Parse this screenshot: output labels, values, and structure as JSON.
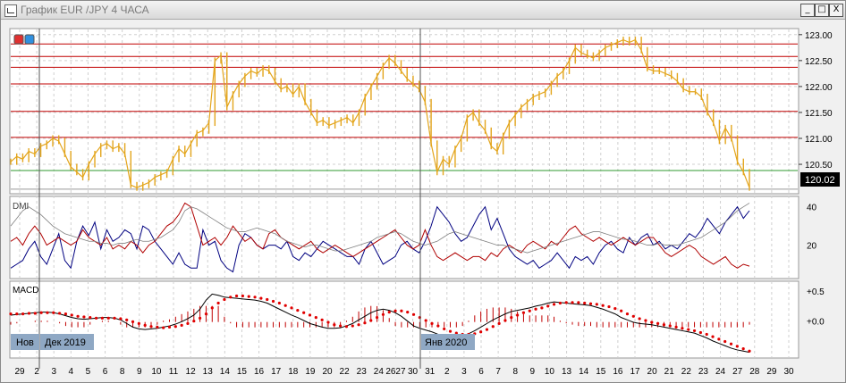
{
  "window": {
    "title": "График EUR /JPY  4 ЧАСА"
  },
  "window_buttons": {
    "minimize": "_",
    "maximize": "□",
    "close": "X"
  },
  "colors": {
    "price": "#e3a51c",
    "level_red": "#c00000",
    "level_green": "#2f9a2f",
    "dmi_pos": "#000080",
    "dmi_neg": "#b00000",
    "adx": "#808080",
    "macd_line": "#000000",
    "signal": "#e00000",
    "hist": "#c00000",
    "period_label_bg": "#8fa8c4"
  },
  "chart_data": [
    {
      "type": "line",
      "panel": "price",
      "title": "",
      "yticks": [
        "123.00",
        "122.50",
        "122.00",
        "121.50",
        "121.00",
        "120.50"
      ],
      "ylim": [
        119.95,
        123.1
      ],
      "horizontal_levels": [
        122.82,
        122.58,
        122.37,
        122.05,
        121.52,
        121.02
      ],
      "support_level": 120.38,
      "current_price": "120.02",
      "series": [
        {
          "values": [
            120.55,
            120.65,
            120.6,
            120.75,
            120.7,
            120.85,
            120.9,
            121.0,
            120.95,
            120.7,
            120.45,
            120.35,
            120.25,
            120.5,
            120.7,
            120.85,
            120.9,
            120.8,
            120.85,
            120.7,
            120.1,
            120.05,
            120.1,
            120.15,
            120.25,
            120.3,
            120.35,
            120.6,
            120.8,
            120.7,
            120.9,
            121.1,
            121.15,
            121.3,
            122.5,
            122.6,
            121.6,
            121.85,
            122.05,
            122.2,
            122.3,
            122.25,
            122.35,
            122.3,
            122.1,
            121.95,
            122.0,
            121.85,
            122.0,
            121.7,
            121.5,
            121.3,
            121.35,
            121.25,
            121.3,
            121.35,
            121.4,
            121.3,
            121.5,
            121.8,
            122.0,
            122.2,
            122.4,
            122.55,
            122.45,
            122.3,
            122.15,
            122.05,
            121.95,
            121.7,
            120.9,
            120.35,
            120.6,
            120.5,
            120.8,
            121.0,
            121.4,
            121.5,
            121.3,
            121.15,
            120.85,
            120.75,
            121.05,
            121.3,
            121.45,
            121.6,
            121.7,
            121.8,
            121.85,
            121.9,
            122.05,
            122.2,
            122.3,
            122.5,
            122.75,
            122.65,
            122.6,
            122.55,
            122.65,
            122.75,
            122.8,
            122.85,
            122.9,
            122.85,
            122.9,
            122.7,
            122.35,
            122.3,
            122.3,
            122.25,
            122.2,
            122.1,
            121.95,
            121.9,
            121.9,
            121.8,
            121.5,
            121.3,
            120.95,
            121.2,
            121.0,
            120.55,
            120.35,
            120.05
          ]
        }
      ]
    },
    {
      "type": "line",
      "panel": "dmi",
      "title": "DMI",
      "yticks": [
        "40",
        "20"
      ],
      "ylim": [
        3,
        45
      ],
      "series": [
        {
          "name": "",
          "color_key": "dmi_pos",
          "values": [
            8,
            10,
            12,
            18,
            22,
            14,
            10,
            18,
            26,
            12,
            8,
            22,
            30,
            25,
            32,
            18,
            28,
            22,
            24,
            28,
            26,
            18,
            30,
            28,
            22,
            18,
            14,
            10,
            16,
            10,
            8,
            8,
            28,
            20,
            22,
            12,
            8,
            6,
            20,
            26,
            24,
            20,
            18,
            20,
            20,
            18,
            22,
            14,
            12,
            16,
            14,
            18,
            22,
            20,
            18,
            16,
            14,
            14,
            10,
            18,
            22,
            16,
            10,
            12,
            14,
            20,
            22,
            18,
            16,
            22,
            30,
            40,
            36,
            32,
            26,
            22,
            24,
            30,
            36,
            40,
            28,
            34,
            26,
            18,
            14,
            12,
            10,
            12,
            8,
            10,
            12,
            16,
            12,
            8,
            14,
            12,
            14,
            10,
            16,
            20,
            22,
            18,
            16,
            24,
            20,
            24,
            26,
            20,
            22,
            18,
            20,
            18,
            22,
            26,
            24,
            28,
            34,
            30,
            26,
            32,
            36,
            40,
            34,
            38
          ]
        },
        {
          "name": "",
          "color_key": "dmi_neg",
          "values": [
            22,
            24,
            20,
            26,
            30,
            26,
            20,
            22,
            24,
            22,
            20,
            22,
            28,
            24,
            22,
            20,
            24,
            18,
            20,
            18,
            22,
            20,
            16,
            20,
            22,
            26,
            30,
            32,
            36,
            42,
            40,
            30,
            20,
            22,
            24,
            20,
            24,
            30,
            26,
            22,
            24,
            20,
            18,
            26,
            28,
            24,
            22,
            20,
            18,
            20,
            22,
            18,
            16,
            18,
            20,
            18,
            16,
            14,
            16,
            18,
            20,
            22,
            24,
            26,
            28,
            24,
            20,
            18,
            20,
            28,
            20,
            14,
            12,
            14,
            16,
            14,
            12,
            14,
            14,
            12,
            16,
            14,
            18,
            20,
            18,
            16,
            20,
            22,
            20,
            18,
            22,
            20,
            24,
            28,
            30,
            26,
            24,
            22,
            24,
            22,
            20,
            22,
            24,
            22,
            20,
            22,
            24,
            24,
            20,
            16,
            14,
            16,
            18,
            20,
            18,
            14,
            12,
            10,
            12,
            14,
            10,
            8,
            10,
            9
          ]
        },
        {
          "name": "",
          "color_key": "adx",
          "values": [
            30,
            34,
            38,
            40,
            38,
            36,
            33,
            30,
            28,
            26,
            25,
            24,
            23,
            22,
            22,
            21,
            21,
            20,
            21,
            21,
            22,
            23,
            22,
            22,
            23,
            24,
            26,
            28,
            32,
            38,
            40,
            39,
            37,
            35,
            33,
            31,
            29,
            28,
            27,
            27,
            28,
            29,
            28,
            27,
            26,
            24,
            22,
            21,
            20,
            19,
            20,
            20,
            19,
            18,
            17,
            17,
            18,
            19,
            20,
            21,
            22,
            24,
            25,
            26,
            27,
            26,
            24,
            22,
            21,
            20,
            21,
            22,
            24,
            26,
            27,
            26,
            25,
            24,
            23,
            22,
            21,
            20,
            20,
            19,
            18,
            17,
            16,
            17,
            18,
            19,
            20,
            21,
            22,
            23,
            24,
            25,
            26,
            27,
            27,
            26,
            25,
            24,
            23,
            23,
            22,
            21,
            20,
            20,
            21,
            20,
            20,
            20,
            21,
            22,
            23,
            24,
            26,
            28,
            30,
            32,
            35,
            38,
            40,
            42
          ]
        }
      ]
    },
    {
      "type": "line",
      "panel": "macd",
      "title": "MACD",
      "yticks": [
        "+0.5",
        "+0.0"
      ],
      "ylim": [
        -0.6,
        0.65
      ],
      "series": [
        {
          "name": "",
          "color_key": "macd_line",
          "values": [
            0.1,
            0.11,
            0.12,
            0.13,
            0.14,
            0.15,
            0.15,
            0.14,
            0.12,
            0.09,
            0.06,
            0.04,
            0.03,
            0.04,
            0.05,
            0.06,
            0.06,
            0.05,
            0.02,
            -0.04,
            -0.1,
            -0.13,
            -0.14,
            -0.13,
            -0.12,
            -0.1,
            -0.08,
            -0.05,
            -0.01,
            0.04,
            0.1,
            0.2,
            0.35,
            0.45,
            0.43,
            0.4,
            0.39,
            0.38,
            0.37,
            0.36,
            0.35,
            0.33,
            0.3,
            0.25,
            0.2,
            0.15,
            0.1,
            0.06,
            0.01,
            -0.04,
            -0.07,
            -0.1,
            -0.12,
            -0.12,
            -0.11,
            -0.08,
            -0.04,
            0.02,
            0.08,
            0.14,
            0.18,
            0.2,
            0.18,
            0.14,
            0.08,
            0.0,
            -0.08,
            -0.12,
            -0.15,
            -0.18,
            -0.22,
            -0.26,
            -0.28,
            -0.27,
            -0.25,
            -0.21,
            -0.16,
            -0.1,
            -0.04,
            0.02,
            0.07,
            0.12,
            0.16,
            0.18,
            0.2,
            0.22,
            0.25,
            0.27,
            0.3,
            0.32,
            0.31,
            0.3,
            0.29,
            0.28,
            0.27,
            0.26,
            0.23,
            0.2,
            0.16,
            0.12,
            0.06,
            0.02,
            -0.02,
            -0.04,
            -0.05,
            -0.06,
            -0.08,
            -0.1,
            -0.12,
            -0.14,
            -0.16,
            -0.18,
            -0.2,
            -0.24,
            -0.28,
            -0.33,
            -0.37,
            -0.41,
            -0.45,
            -0.48,
            -0.5,
            -0.52
          ]
        },
        {
          "name": "",
          "color_key": "signal",
          "values": [
            0.12,
            0.12,
            0.12,
            0.13,
            0.13,
            0.14,
            0.14,
            0.14,
            0.13,
            0.12,
            0.1,
            0.08,
            0.07,
            0.06,
            0.05,
            0.05,
            0.05,
            0.05,
            0.04,
            0.02,
            -0.01,
            -0.04,
            -0.07,
            -0.09,
            -0.1,
            -0.11,
            -0.1,
            -0.09,
            -0.07,
            -0.04,
            0.0,
            0.05,
            0.12,
            0.22,
            0.3,
            0.36,
            0.4,
            0.42,
            0.42,
            0.41,
            0.4,
            0.38,
            0.36,
            0.33,
            0.3,
            0.26,
            0.22,
            0.18,
            0.14,
            0.1,
            0.06,
            0.02,
            -0.02,
            -0.06,
            -0.08,
            -0.09,
            -0.08,
            -0.06,
            -0.03,
            0.01,
            0.06,
            0.11,
            0.15,
            0.17,
            0.17,
            0.15,
            0.11,
            0.06,
            0.01,
            -0.04,
            -0.08,
            -0.13,
            -0.17,
            -0.2,
            -0.22,
            -0.22,
            -0.21,
            -0.18,
            -0.14,
            -0.09,
            -0.04,
            0.01,
            0.06,
            0.1,
            0.14,
            0.17,
            0.2,
            0.22,
            0.25,
            0.28,
            0.3,
            0.31,
            0.31,
            0.31,
            0.3,
            0.29,
            0.28,
            0.26,
            0.24,
            0.21,
            0.17,
            0.12,
            0.08,
            0.04,
            0.01,
            -0.02,
            -0.04,
            -0.06,
            -0.08,
            -0.1,
            -0.12,
            -0.14,
            -0.16,
            -0.19,
            -0.22,
            -0.26,
            -0.3,
            -0.34,
            -0.38,
            -0.42,
            -0.46,
            -0.5
          ]
        }
      ]
    }
  ],
  "x_axis": {
    "tick_labels": [
      "29",
      "2",
      "3",
      "4",
      "5",
      "6",
      "8",
      "9",
      "10",
      "11",
      "12",
      "13",
      "14",
      "15",
      "16",
      "17",
      "18",
      "19",
      "20",
      "22",
      "23",
      "24",
      "2627",
      "30",
      "31",
      "2",
      "3",
      "6",
      "7",
      "8",
      "9",
      "10",
      "13",
      "14",
      "15",
      "16",
      "17",
      "20",
      "21",
      "22",
      "23",
      "24",
      "27",
      "28",
      "29",
      "30"
    ],
    "period_labels": [
      "Нов",
      "Дек 2019",
      "Янв 2020"
    ]
  }
}
